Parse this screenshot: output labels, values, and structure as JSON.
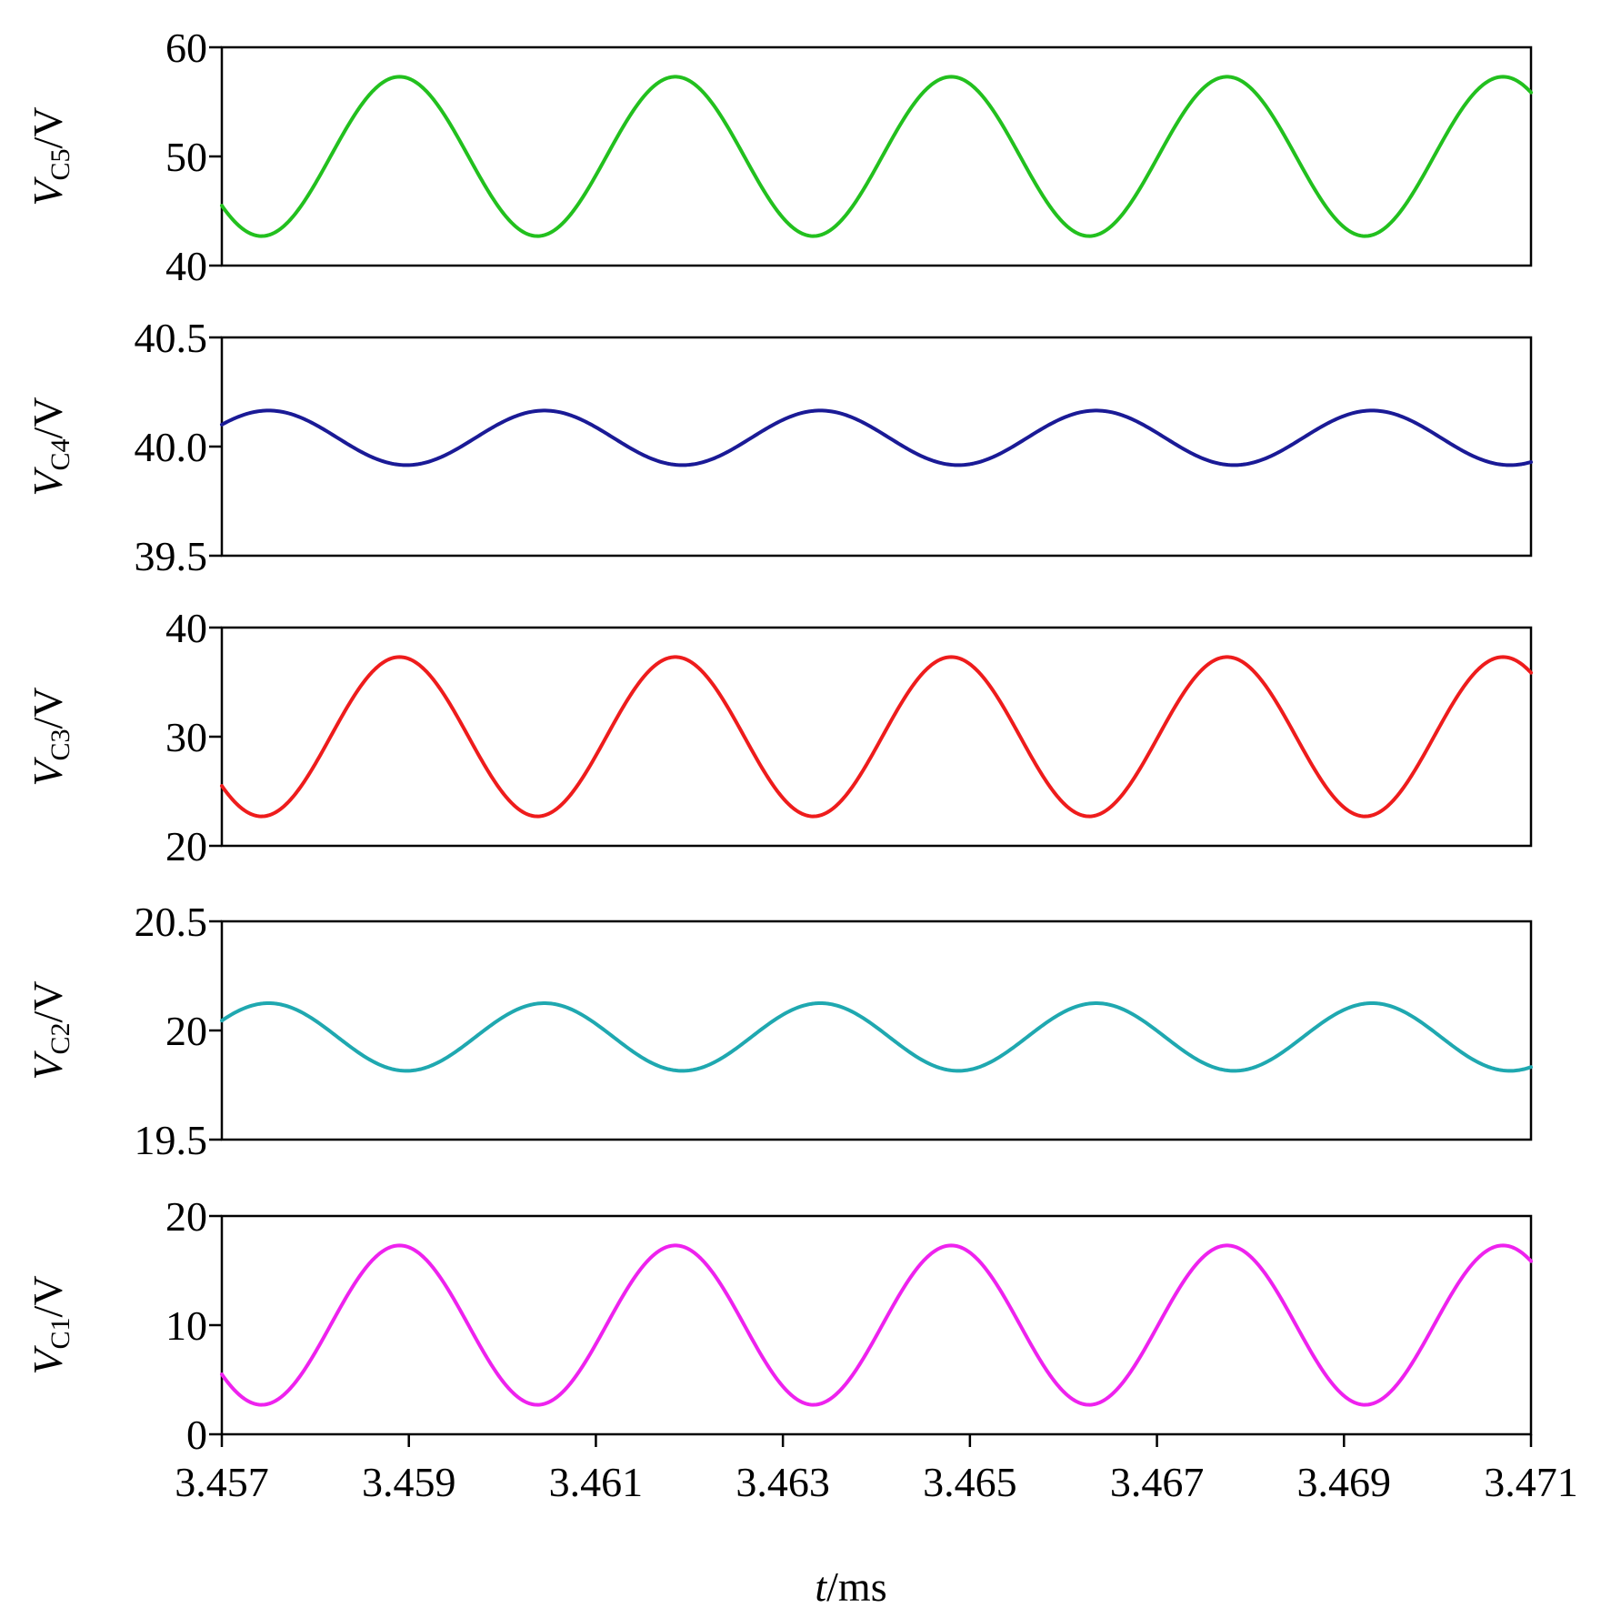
{
  "chart_data": {
    "type": "line",
    "layout": "stacked-subplots",
    "shared_x": {
      "label_var": "t",
      "label_unit": "/ms",
      "range": [
        3.457,
        3.471
      ],
      "ticks": [
        3.457,
        3.459,
        3.461,
        3.463,
        3.465,
        3.467,
        3.469,
        3.471
      ],
      "tick_labels": [
        "3.457",
        "3.459",
        "3.461",
        "3.463",
        "3.465",
        "3.467",
        "3.469",
        "3.471"
      ]
    },
    "panels": [
      {
        "id": "vc5",
        "ylabel_var": "V",
        "ylabel_sub": "C5",
        "ylabel_unit": "/V",
        "ylim": [
          40,
          60
        ],
        "ticks": [
          40,
          50,
          60
        ],
        "tick_labels": [
          "40",
          "50",
          "60"
        ],
        "color": "#22c01e",
        "series": {
          "name": "VC5",
          "offset": 50,
          "amplitude": 7.3,
          "period_ms": 0.00295,
          "peak_t": 3.4589,
          "unit": "V"
        }
      },
      {
        "id": "vc4",
        "ylabel_var": "V",
        "ylabel_sub": "C4",
        "ylabel_unit": "/V",
        "ylim": [
          39.5,
          40.5
        ],
        "ticks": [
          39.5,
          40.0,
          40.5
        ],
        "tick_labels": [
          "39.5",
          "40.0",
          "40.5"
        ],
        "color": "#1a1a96",
        "series": {
          "name": "VC4",
          "offset": 40.04,
          "amplitude": 0.125,
          "period_ms": 0.00295,
          "peak_t": 3.4575,
          "unit": "V"
        }
      },
      {
        "id": "vc3",
        "ylabel_var": "V",
        "ylabel_sub": "C3",
        "ylabel_unit": "/V",
        "ylim": [
          20,
          40
        ],
        "ticks": [
          20,
          30,
          40
        ],
        "tick_labels": [
          "20",
          "30",
          "40"
        ],
        "color": "#ee1c1c",
        "series": {
          "name": "VC3",
          "offset": 30,
          "amplitude": 7.3,
          "period_ms": 0.00295,
          "peak_t": 3.4589,
          "unit": "V"
        }
      },
      {
        "id": "vc2",
        "ylabel_var": "V",
        "ylabel_sub": "C2",
        "ylabel_unit": "/V",
        "ylim": [
          19.5,
          20.5
        ],
        "ticks": [
          19.5,
          20,
          20.5
        ],
        "tick_labels": [
          "19.5",
          "20",
          "20.5"
        ],
        "color": "#1fa8b0",
        "series": {
          "name": "VC2",
          "offset": 19.97,
          "amplitude": 0.155,
          "period_ms": 0.00295,
          "peak_t": 3.4575,
          "unit": "V"
        }
      },
      {
        "id": "vc1",
        "ylabel_var": "V",
        "ylabel_sub": "C1",
        "ylabel_unit": "/V",
        "ylim": [
          0,
          20
        ],
        "ticks": [
          0,
          10,
          20
        ],
        "tick_labels": [
          "0",
          "10",
          "20"
        ],
        "color": "#ee22ee",
        "series": {
          "name": "VC1",
          "offset": 10,
          "amplitude": 7.3,
          "period_ms": 0.00295,
          "peak_t": 3.4589,
          "unit": "V"
        }
      }
    ]
  }
}
